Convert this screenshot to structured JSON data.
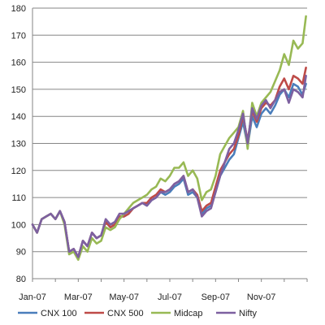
{
  "chart_data": {
    "type": "line",
    "title": "",
    "xlabel": "",
    "ylabel": "",
    "ylim": [
      80,
      180
    ],
    "y_ticks": [
      80,
      90,
      100,
      110,
      120,
      130,
      140,
      150,
      160,
      170,
      180
    ],
    "x_range": [
      0,
      12
    ],
    "x_ticks": [
      {
        "x": 0,
        "label": "Jan-07"
      },
      {
        "x": 2,
        "label": "Mar-07"
      },
      {
        "x": 4,
        "label": "May-07"
      },
      {
        "x": 6,
        "label": "Jul-07"
      },
      {
        "x": 8,
        "label": "Sep-07"
      },
      {
        "x": 10,
        "label": "Nov-07"
      }
    ],
    "grid": "horizontal",
    "legend_position": "bottom",
    "x": [
      0,
      0.2,
      0.4,
      0.6,
      0.8,
      1.0,
      1.2,
      1.4,
      1.6,
      1.8,
      2.0,
      2.2,
      2.4,
      2.6,
      2.8,
      3.0,
      3.2,
      3.4,
      3.6,
      3.8,
      4.0,
      4.2,
      4.4,
      4.6,
      4.8,
      5.0,
      5.2,
      5.4,
      5.6,
      5.8,
      6.0,
      6.2,
      6.4,
      6.6,
      6.8,
      7.0,
      7.2,
      7.4,
      7.6,
      7.8,
      8.0,
      8.2,
      8.4,
      8.6,
      8.8,
      9.0,
      9.2,
      9.4,
      9.6,
      9.8,
      10.0,
      10.2,
      10.4,
      10.6,
      10.8,
      11.0,
      11.2,
      11.4,
      11.6,
      11.8,
      11.95
    ],
    "series": [
      {
        "name": "CNX 100",
        "color": "#4a7ebb",
        "values": [
          100,
          97,
          102,
          103,
          104,
          102,
          105,
          101,
          90,
          91,
          88,
          94,
          92,
          97,
          95,
          96,
          101,
          99,
          100,
          103,
          103,
          104,
          106,
          107,
          108,
          107,
          109,
          110,
          112,
          111,
          112,
          114,
          115,
          117,
          111,
          112,
          110,
          104,
          106,
          107,
          112,
          118,
          121,
          124,
          126,
          132,
          138,
          129,
          140,
          136,
          141,
          143,
          141,
          144,
          148,
          150,
          147,
          152,
          151,
          148,
          152
        ]
      },
      {
        "name": "CNX 500",
        "color": "#be4b48",
        "values": [
          100,
          97,
          102,
          103,
          104,
          102,
          105,
          101,
          90,
          91,
          88,
          94,
          92,
          97,
          95,
          96,
          101,
          99,
          100,
          103,
          103,
          104,
          106,
          107,
          108,
          108,
          110,
          111,
          113,
          112,
          113,
          115,
          116,
          118,
          112,
          113,
          111,
          105,
          107,
          108,
          114,
          120,
          123,
          126,
          128,
          133,
          140,
          131,
          142,
          138,
          143,
          145,
          144,
          146,
          151,
          154,
          150,
          155,
          154,
          152,
          158
        ]
      },
      {
        "name": "Midcap",
        "color": "#98b954",
        "values": [
          100,
          97,
          102,
          103,
          104,
          102,
          105,
          100,
          89,
          90,
          87,
          92,
          90,
          95,
          93,
          94,
          99,
          98,
          99,
          102,
          104,
          106,
          108,
          109,
          110,
          111,
          113,
          114,
          117,
          116,
          118,
          121,
          121,
          123,
          118,
          120,
          117,
          109,
          112,
          113,
          118,
          126,
          129,
          132,
          134,
          136,
          142,
          128,
          145,
          140,
          145,
          147,
          149,
          153,
          157,
          163,
          159,
          168,
          165,
          167,
          177
        ]
      },
      {
        "name": "Nifty",
        "color": "#7d60a0",
        "values": [
          100,
          97,
          102,
          103,
          104,
          102,
          105,
          101,
          90,
          91,
          88,
          94,
          92,
          97,
          95,
          96,
          102,
          100,
          101,
          104,
          104,
          105,
          106,
          107,
          108,
          107,
          109,
          110,
          112,
          112,
          113,
          115,
          116,
          118,
          112,
          113,
          110,
          103,
          105,
          106,
          112,
          118,
          123,
          128,
          130,
          135,
          141,
          130,
          143,
          139,
          144,
          146,
          143,
          146,
          149,
          150,
          145,
          150,
          149,
          147,
          155
        ]
      }
    ]
  }
}
